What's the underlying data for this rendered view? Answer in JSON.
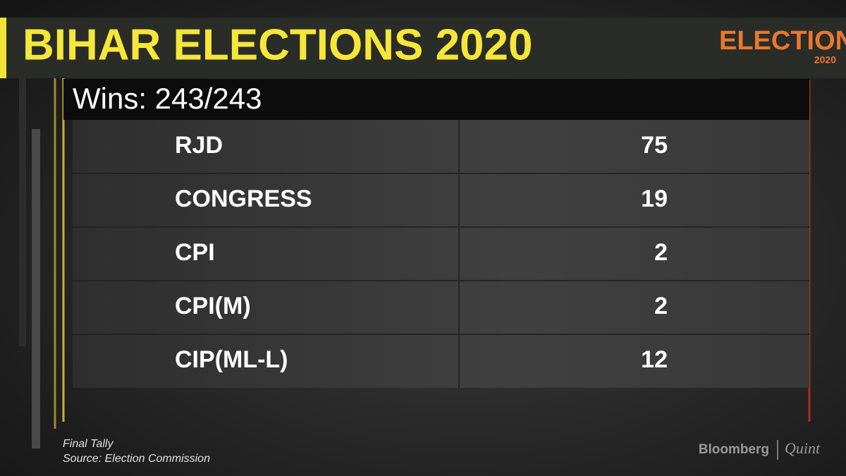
{
  "header": {
    "title": "BIHAR ELECTIONS 2020",
    "logo": "ELECTIONS",
    "logo_year": "2020"
  },
  "subtitle": "Wins: 243/243",
  "table": {
    "rows": [
      [
        "RJD",
        75
      ],
      [
        "CONGRESS",
        19
      ],
      [
        "CPI",
        2
      ],
      [
        "CPI(M)",
        2
      ],
      [
        "CIP(ML-L)",
        12
      ]
    ]
  },
  "footer": {
    "note": "Final Tally",
    "source": "Source: Election Commission",
    "brand": "Bloomberg",
    "brand2": "Quint"
  }
}
